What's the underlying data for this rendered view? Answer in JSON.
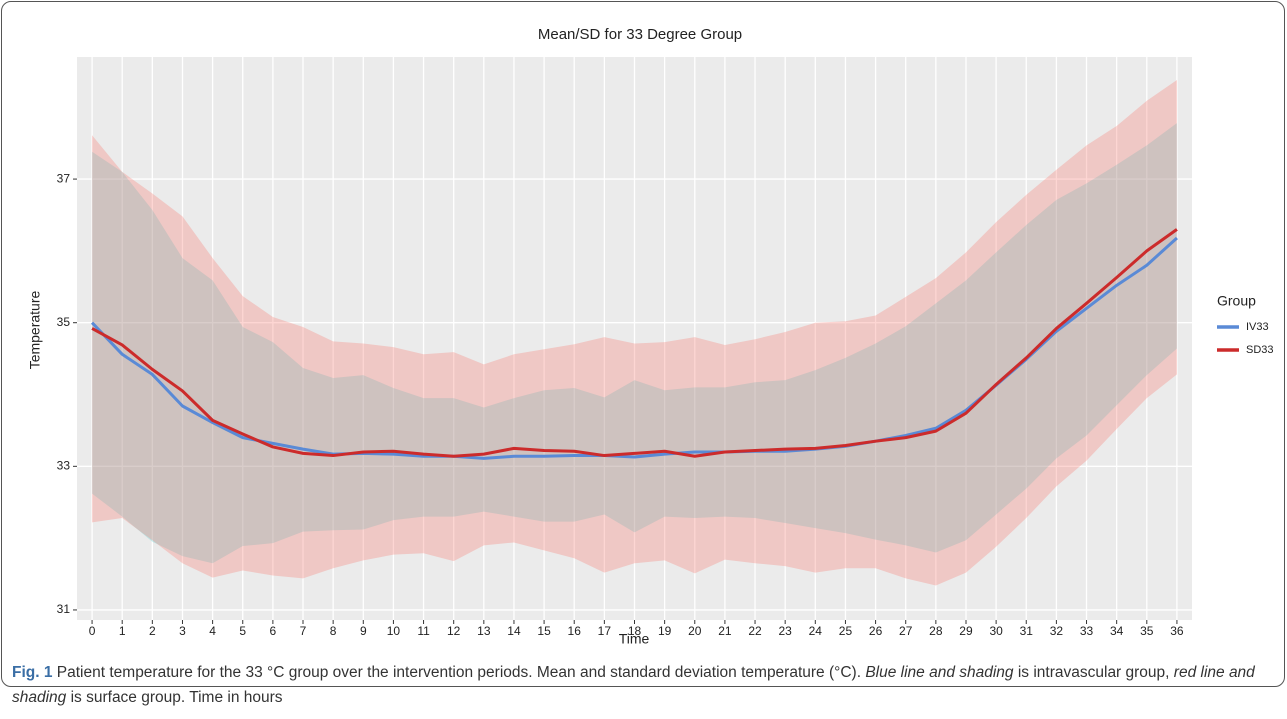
{
  "chart_data": {
    "type": "line",
    "title": "Mean/SD for 33 Degree Group",
    "x_label": "Time",
    "y_label": "Temperature",
    "legend_title": "Group",
    "legend": "right",
    "grid": true,
    "x": [
      0,
      1,
      2,
      3,
      4,
      5,
      6,
      7,
      8,
      9,
      10,
      11,
      12,
      13,
      14,
      15,
      16,
      17,
      18,
      19,
      20,
      21,
      22,
      23,
      24,
      25,
      26,
      27,
      28,
      29,
      30,
      31,
      32,
      33,
      34,
      35,
      36
    ],
    "xlim": [
      -0.5,
      36.5
    ],
    "xticks": [
      0,
      1,
      2,
      3,
      4,
      5,
      6,
      7,
      8,
      9,
      10,
      11,
      12,
      13,
      14,
      15,
      16,
      17,
      18,
      19,
      20,
      21,
      22,
      23,
      24,
      25,
      26,
      27,
      28,
      29,
      30,
      31,
      32,
      33,
      34,
      35,
      36
    ],
    "ylim": [
      30.86,
      38.7
    ],
    "yticks": [
      31,
      33,
      35,
      37
    ],
    "series": [
      {
        "name": "IV33",
        "color": "#5a8ad6",
        "band_color": "#00bfc4",
        "values": [
          35.0,
          34.56,
          34.28,
          33.84,
          33.61,
          33.4,
          33.32,
          33.24,
          33.17,
          33.18,
          33.17,
          33.14,
          33.14,
          33.11,
          33.14,
          33.14,
          33.15,
          33.15,
          33.13,
          33.17,
          33.2,
          33.2,
          33.21,
          33.21,
          33.24,
          33.28,
          33.35,
          33.43,
          33.53,
          33.78,
          34.13,
          34.49,
          34.88,
          35.2,
          35.52,
          35.8,
          36.18
        ],
        "upper": [
          37.38,
          37.1,
          36.57,
          35.9,
          35.59,
          34.94,
          34.73,
          34.37,
          34.23,
          34.27,
          34.09,
          33.95,
          33.95,
          33.82,
          33.95,
          34.06,
          34.09,
          33.96,
          34.2,
          34.06,
          34.1,
          34.1,
          34.17,
          34.2,
          34.34,
          34.51,
          34.71,
          34.95,
          35.27,
          35.59,
          35.98,
          36.36,
          36.71,
          36.94,
          37.2,
          37.47,
          37.78
        ],
        "lower": [
          32.62,
          32.3,
          31.95,
          31.75,
          31.65,
          31.89,
          31.93,
          32.09,
          32.11,
          32.12,
          32.25,
          32.3,
          32.3,
          32.37,
          32.3,
          32.23,
          32.23,
          32.33,
          32.08,
          32.3,
          32.28,
          32.3,
          32.28,
          32.21,
          32.14,
          32.07,
          31.98,
          31.9,
          31.8,
          31.97,
          32.33,
          32.69,
          33.11,
          33.43,
          33.85,
          34.27,
          34.64
        ]
      },
      {
        "name": "SD33",
        "color": "#cc2b2b",
        "band_color": "#f8766d",
        "values": [
          34.92,
          34.69,
          34.35,
          34.05,
          33.64,
          33.45,
          33.27,
          33.18,
          33.15,
          33.2,
          33.21,
          33.17,
          33.14,
          33.17,
          33.25,
          33.22,
          33.21,
          33.15,
          33.18,
          33.21,
          33.14,
          33.2,
          33.22,
          33.24,
          33.25,
          33.29,
          33.35,
          33.4,
          33.49,
          33.74,
          34.14,
          34.51,
          34.92,
          35.27,
          35.63,
          36.0,
          36.3
        ],
        "upper": [
          37.61,
          37.1,
          36.8,
          36.48,
          35.9,
          35.37,
          35.08,
          34.94,
          34.74,
          34.71,
          34.66,
          34.56,
          34.59,
          34.42,
          34.56,
          34.63,
          34.7,
          34.8,
          34.71,
          34.73,
          34.8,
          34.69,
          34.77,
          34.87,
          35.0,
          35.02,
          35.1,
          35.36,
          35.62,
          35.98,
          36.4,
          36.78,
          37.13,
          37.47,
          37.74,
          38.09,
          38.38
        ],
        "lower": [
          32.22,
          32.28,
          31.97,
          31.65,
          31.45,
          31.55,
          31.48,
          31.44,
          31.58,
          31.69,
          31.77,
          31.79,
          31.68,
          31.9,
          31.94,
          31.83,
          31.72,
          31.52,
          31.65,
          31.69,
          31.51,
          31.7,
          31.65,
          31.61,
          31.52,
          31.58,
          31.58,
          31.44,
          31.34,
          31.52,
          31.88,
          32.28,
          32.72,
          33.08,
          33.52,
          33.95,
          34.28
        ]
      }
    ]
  },
  "caption": {
    "label": "Fig. 1",
    "parts": [
      " Patient temperature for the 33 °C group over the intervention periods. Mean and standard deviation temperature (°C). ",
      "Blue line and shading",
      " is intravascular group, ",
      "red line and shading",
      " is surface group. Time in hours"
    ]
  }
}
